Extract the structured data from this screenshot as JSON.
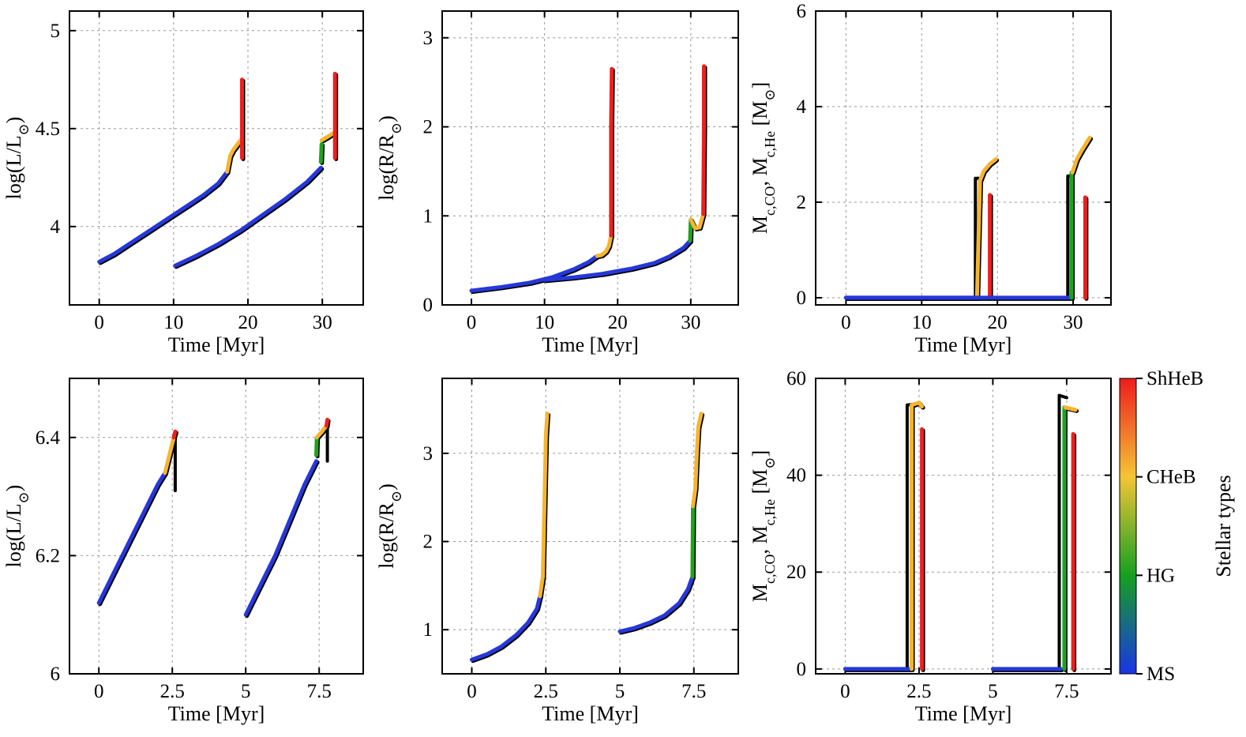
{
  "stage_colors": {
    "MS": "#2638d8",
    "HG": "#1fa31f",
    "CHeB": "#f5b52e",
    "ShHeB": "#ee1f1f",
    "shadow": "#000000"
  },
  "colorbar": {
    "title": "Stellar types",
    "ticks": [
      "MS",
      "HG",
      "CHeB",
      "ShHeB"
    ],
    "gradient": [
      "#1a35e6",
      "#15a020",
      "#f4c536",
      "#ee1c1c"
    ]
  },
  "chart_data": [
    {
      "id": "top-left",
      "type": "line",
      "xlabel": "Time [Myr]",
      "ylabel": "log(L/L⊙)",
      "xlim": [
        -4,
        35.5
      ],
      "ylim": [
        3.6,
        5.1
      ],
      "xticks": [
        0,
        10,
        20,
        30
      ],
      "xtick_labels": [
        "0",
        "10",
        "20",
        "30"
      ],
      "yticks": [
        4,
        4.5,
        5
      ],
      "ytick_labels": [
        "4",
        "4.5",
        "5"
      ],
      "series": [
        {
          "stage": "MS",
          "x": [
            0,
            2,
            4,
            6,
            8,
            10,
            12,
            14,
            16,
            17.2
          ],
          "y": [
            3.82,
            3.86,
            3.91,
            3.96,
            4.01,
            4.06,
            4.11,
            4.16,
            4.22,
            4.28
          ]
        },
        {
          "stage": "CHeB",
          "x": [
            17.2,
            17.6,
            18.0,
            18.6,
            19.2
          ],
          "y": [
            4.28,
            4.36,
            4.39,
            4.42,
            4.45
          ]
        },
        {
          "stage": "ShHeB",
          "x": [
            19.2,
            19.2
          ],
          "y": [
            4.35,
            4.75
          ]
        },
        {
          "stage": "MS",
          "x": [
            10.2,
            13,
            16,
            19,
            22,
            25,
            28,
            29.8
          ],
          "y": [
            3.8,
            3.85,
            3.91,
            3.98,
            4.06,
            4.14,
            4.23,
            4.3
          ]
        },
        {
          "stage": "HG",
          "x": [
            29.8,
            29.9
          ],
          "y": [
            4.33,
            4.42
          ]
        },
        {
          "stage": "CHeB",
          "x": [
            29.9,
            30.8,
            31.6
          ],
          "y": [
            4.44,
            4.46,
            4.48
          ]
        },
        {
          "stage": "ShHeB",
          "x": [
            31.7,
            31.7
          ],
          "y": [
            4.35,
            4.78
          ]
        }
      ]
    },
    {
      "id": "top-middle",
      "type": "line",
      "xlabel": "Time [Myr]",
      "ylabel": "log(R/R⊙)",
      "xlim": [
        -4,
        36.5
      ],
      "ylim": [
        0,
        3.3
      ],
      "xticks": [
        0,
        10,
        20,
        30
      ],
      "xtick_labels": [
        "0",
        "10",
        "20",
        "30"
      ],
      "yticks": [
        0,
        1,
        2,
        3
      ],
      "ytick_labels": [
        "0",
        "1",
        "2",
        "3"
      ],
      "series": [
        {
          "stage": "MS",
          "x": [
            0,
            4,
            8,
            11,
            14,
            16,
            17.2
          ],
          "y": [
            0.16,
            0.2,
            0.25,
            0.31,
            0.4,
            0.48,
            0.55
          ]
        },
        {
          "stage": "CHeB",
          "x": [
            17.2,
            17.8,
            18.4,
            18.8,
            19.1
          ],
          "y": [
            0.55,
            0.56,
            0.6,
            0.66,
            0.78
          ]
        },
        {
          "stage": "ShHeB",
          "x": [
            19.1,
            19.1,
            19.2
          ],
          "y": [
            0.78,
            2.0,
            2.65
          ]
        },
        {
          "stage": "MS",
          "x": [
            10,
            14,
            18,
            22,
            25,
            27,
            29,
            29.9
          ],
          "y": [
            0.28,
            0.31,
            0.35,
            0.41,
            0.47,
            0.54,
            0.64,
            0.72
          ]
        },
        {
          "stage": "HG",
          "x": [
            29.9,
            30.0
          ],
          "y": [
            0.72,
            0.96
          ]
        },
        {
          "stage": "CHeB",
          "x": [
            30.0,
            30.6,
            31.2,
            31.7
          ],
          "y": [
            0.96,
            0.86,
            0.87,
            1.02
          ]
        },
        {
          "stage": "ShHeB",
          "x": [
            31.7,
            31.8,
            31.8
          ],
          "y": [
            1.02,
            2.0,
            2.68
          ]
        }
      ]
    },
    {
      "id": "top-right",
      "type": "line",
      "xlabel": "Time [Myr]",
      "ylabel": "Mc,CO, Mc,He [M⊙]",
      "xlim": [
        -4,
        35
      ],
      "ylim": [
        -0.15,
        6
      ],
      "xticks": [
        0,
        10,
        20,
        30
      ],
      "xtick_labels": [
        "0",
        "10",
        "20",
        "30"
      ],
      "yticks": [
        0,
        2,
        4,
        6
      ],
      "ytick_labels": [
        "0",
        "2",
        "4",
        "6"
      ],
      "series": [
        {
          "stage": "MS",
          "x": [
            0,
            17.2
          ],
          "y": [
            0,
            0
          ]
        },
        {
          "stage": "shadow",
          "x": [
            17.1,
            17.1,
            17.6
          ],
          "y": [
            0,
            2.5,
            2.5
          ]
        },
        {
          "stage": "CHeB",
          "x": [
            17.3,
            17.7,
            18.2,
            19.0,
            19.8
          ],
          "y": [
            0,
            2.45,
            2.65,
            2.8,
            2.9
          ]
        },
        {
          "stage": "ShHeB",
          "x": [
            19.0,
            19.0
          ],
          "y": [
            0,
            2.15
          ]
        },
        {
          "stage": "MS",
          "x": [
            0,
            29.5
          ],
          "y": [
            0,
            0
          ]
        },
        {
          "stage": "shadow",
          "x": [
            29.3,
            29.3,
            29.8
          ],
          "y": [
            0,
            2.55,
            2.55
          ]
        },
        {
          "stage": "HG",
          "x": [
            29.8,
            29.8
          ],
          "y": [
            0,
            2.62
          ]
        },
        {
          "stage": "CHeB",
          "x": [
            29.9,
            30.5,
            31.2,
            31.8,
            32.2
          ],
          "y": [
            2.62,
            2.9,
            3.1,
            3.25,
            3.35
          ]
        },
        {
          "stage": "ShHeB",
          "x": [
            31.6,
            31.6
          ],
          "y": [
            0,
            2.1
          ]
        }
      ]
    },
    {
      "id": "bottom-left",
      "type": "line",
      "xlabel": "Time [Myr]",
      "ylabel": "log(L/L⊙)",
      "xlim": [
        -1.0,
        9.0
      ],
      "ylim": [
        6.0,
        6.5
      ],
      "xticks": [
        0,
        2.5,
        5,
        7.5
      ],
      "xtick_labels": [
        "0",
        "2.5",
        "5",
        "7.5"
      ],
      "yticks": [
        6,
        6.2,
        6.4
      ],
      "ytick_labels": [
        "6",
        "6.2",
        "6.4"
      ],
      "series": [
        {
          "stage": "MS",
          "x": [
            0,
            0.5,
            1.0,
            1.5,
            2.0,
            2.25
          ],
          "y": [
            6.12,
            6.17,
            6.22,
            6.27,
            6.32,
            6.34
          ]
        },
        {
          "stage": "CHeB",
          "x": [
            2.25,
            2.4,
            2.55
          ],
          "y": [
            6.34,
            6.37,
            6.4
          ]
        },
        {
          "stage": "ShHeB",
          "x": [
            2.55,
            2.6
          ],
          "y": [
            6.4,
            6.41
          ]
        },
        {
          "stage": "shadow",
          "x": [
            2.6,
            2.6
          ],
          "y": [
            6.31,
            6.41
          ]
        },
        {
          "stage": "MS",
          "x": [
            5.0,
            5.5,
            6.0,
            6.5,
            7.0,
            7.4
          ],
          "y": [
            6.1,
            6.15,
            6.2,
            6.26,
            6.32,
            6.36
          ]
        },
        {
          "stage": "HG",
          "x": [
            7.4,
            7.42
          ],
          "y": [
            6.37,
            6.4
          ]
        },
        {
          "stage": "CHeB",
          "x": [
            7.42,
            7.6,
            7.75
          ],
          "y": [
            6.4,
            6.41,
            6.42
          ]
        },
        {
          "stage": "ShHeB",
          "x": [
            7.75,
            7.78
          ],
          "y": [
            6.42,
            6.43
          ]
        },
        {
          "stage": "shadow",
          "x": [
            7.78,
            7.78
          ],
          "y": [
            6.36,
            6.43
          ]
        }
      ]
    },
    {
      "id": "bottom-middle",
      "type": "line",
      "xlabel": "Time [Myr]",
      "ylabel": "log(R/R⊙)",
      "xlim": [
        -1.0,
        9.0
      ],
      "ylim": [
        0.5,
        3.85
      ],
      "xticks": [
        0,
        2.5,
        5,
        7.5
      ],
      "xtick_labels": [
        "0",
        "2.5",
        "5",
        "7.5"
      ],
      "yticks": [
        1,
        2,
        3
      ],
      "ytick_labels": [
        "1",
        "2",
        "3"
      ],
      "series": [
        {
          "stage": "MS",
          "x": [
            0,
            0.5,
            1.0,
            1.5,
            1.9,
            2.2,
            2.3
          ],
          "y": [
            0.66,
            0.72,
            0.81,
            0.94,
            1.08,
            1.24,
            1.38
          ]
        },
        {
          "stage": "CHeB",
          "x": [
            2.3,
            2.4,
            2.45,
            2.5,
            2.55
          ],
          "y": [
            1.38,
            1.6,
            2.4,
            3.2,
            3.45
          ]
        },
        {
          "stage": "MS",
          "x": [
            5.0,
            5.5,
            6.0,
            6.5,
            7.0,
            7.3,
            7.45
          ],
          "y": [
            0.98,
            1.02,
            1.08,
            1.16,
            1.3,
            1.46,
            1.6
          ]
        },
        {
          "stage": "HG",
          "x": [
            7.45,
            7.47
          ],
          "y": [
            1.6,
            2.4
          ]
        },
        {
          "stage": "CHeB",
          "x": [
            7.47,
            7.55,
            7.6,
            7.65,
            7.75
          ],
          "y": [
            2.4,
            2.6,
            3.0,
            3.3,
            3.45
          ]
        }
      ]
    },
    {
      "id": "bottom-right",
      "type": "line",
      "xlabel": "Time [Myr]",
      "ylabel": "Mc,CO, Mc,He [M⊙]",
      "xlim": [
        -1.0,
        9.0
      ],
      "ylim": [
        -1.0,
        60
      ],
      "xticks": [
        0,
        2.5,
        5,
        7.5
      ],
      "xtick_labels": [
        "0",
        "2.5",
        "5",
        "7.5"
      ],
      "yticks": [
        0,
        20,
        40,
        60
      ],
      "ytick_labels": [
        "0",
        "20",
        "40",
        "60"
      ],
      "series": [
        {
          "stage": "MS",
          "x": [
            0,
            2.2
          ],
          "y": [
            0,
            0
          ]
        },
        {
          "stage": "shadow",
          "x": [
            2.1,
            2.1,
            2.5,
            2.6
          ],
          "y": [
            0,
            54.5,
            54.8,
            54.0
          ]
        },
        {
          "stage": "CHeB",
          "x": [
            2.25,
            2.25,
            2.5,
            2.6
          ],
          "y": [
            0,
            54.5,
            55.0,
            54.2
          ]
        },
        {
          "stage": "ShHeB",
          "x": [
            2.6,
            2.6
          ],
          "y": [
            0,
            49.5
          ]
        },
        {
          "stage": "MS",
          "x": [
            5.0,
            7.3
          ],
          "y": [
            0,
            0
          ]
        },
        {
          "stage": "shadow",
          "x": [
            7.25,
            7.25,
            7.5
          ],
          "y": [
            0,
            56.5,
            56.0
          ]
        },
        {
          "stage": "HG",
          "x": [
            7.42,
            7.42
          ],
          "y": [
            0,
            54.0
          ]
        },
        {
          "stage": "CHeB",
          "x": [
            7.45,
            7.6,
            7.8
          ],
          "y": [
            54.0,
            53.8,
            53.5
          ]
        },
        {
          "stage": "ShHeB",
          "x": [
            7.72,
            7.72
          ],
          "y": [
            0,
            48.5
          ]
        }
      ]
    }
  ]
}
